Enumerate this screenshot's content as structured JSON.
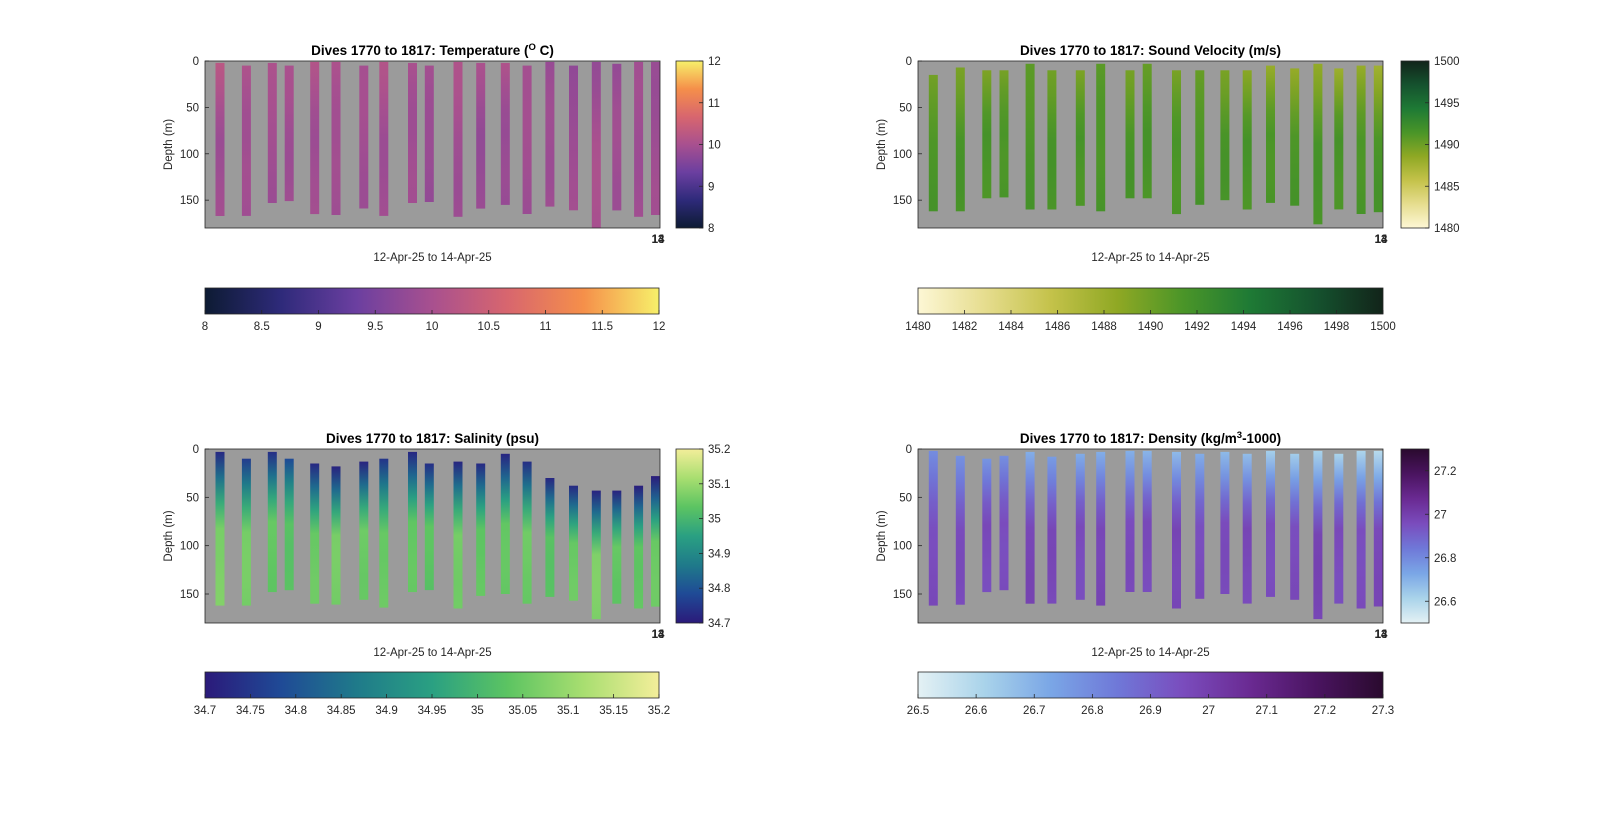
{
  "chart_data": [
    {
      "type": "heatmap",
      "title": "Dives 1770 to 1817: Temperature (",
      "title_sup": "O",
      "title_end": " C)",
      "xlabel": "12-Apr-25 to 14-Apr-25",
      "ylabel": "Depth (m)",
      "y_ticks": [
        "0",
        "50",
        "100",
        "150"
      ],
      "ylim": [
        0,
        180
      ],
      "y_reversed": true,
      "x_tick_labels": [
        "13",
        "14"
      ],
      "background_color": "#9b9b9b",
      "side_colorbar": {
        "ticks": [
          "8",
          "9",
          "10",
          "11",
          "12"
        ],
        "range": [
          8,
          12
        ]
      },
      "bottom_colorbar": {
        "ticks": [
          "8",
          "8.5",
          "9",
          "9.5",
          "10",
          "10.5",
          "11",
          "11.5",
          "12"
        ],
        "range": [
          8,
          12
        ]
      },
      "colormap": [
        "#0d1b33",
        "#2e2a7a",
        "#6b3fa0",
        "#a8508f",
        "#d8666e",
        "#f58f4a",
        "#f7f06a"
      ],
      "profiles": [
        {
          "top": 2,
          "bottom": 167,
          "top_value": 10.2,
          "deep_value": 9.9
        },
        {
          "top": 5,
          "bottom": 167,
          "top_value": 10.1,
          "deep_value": 9.9
        },
        {
          "top": 2,
          "bottom": 153,
          "top_value": 10.1,
          "deep_value": 9.9
        },
        {
          "top": 5,
          "bottom": 151,
          "top_value": 10.0,
          "deep_value": 9.9
        },
        {
          "top": 1,
          "bottom": 165,
          "top_value": 10.1,
          "deep_value": 9.9
        },
        {
          "top": 1,
          "bottom": 166,
          "top_value": 10.1,
          "deep_value": 9.9
        },
        {
          "top": 5,
          "bottom": 159,
          "top_value": 10.0,
          "deep_value": 9.9
        },
        {
          "top": 1,
          "bottom": 167,
          "top_value": 10.1,
          "deep_value": 9.9
        },
        {
          "top": 2,
          "bottom": 153,
          "top_value": 10.0,
          "deep_value": 9.9
        },
        {
          "top": 5,
          "bottom": 152,
          "top_value": 10.0,
          "deep_value": 9.8
        },
        {
          "top": 1,
          "bottom": 168,
          "top_value": 10.1,
          "deep_value": 9.9
        },
        {
          "top": 2,
          "bottom": 159,
          "top_value": 10.0,
          "deep_value": 9.8
        },
        {
          "top": 2,
          "bottom": 155,
          "top_value": 10.1,
          "deep_value": 9.8
        },
        {
          "top": 5,
          "bottom": 165,
          "top_value": 10.0,
          "deep_value": 9.9
        },
        {
          "top": 1,
          "bottom": 157,
          "top_value": 9.8,
          "deep_value": 9.9
        },
        {
          "top": 5,
          "bottom": 161,
          "top_value": 9.7,
          "deep_value": 9.9
        },
        {
          "top": 1,
          "bottom": 180,
          "top_value": 9.8,
          "deep_value": 10.0
        },
        {
          "top": 3,
          "bottom": 161,
          "top_value": 9.8,
          "deep_value": 9.9
        },
        {
          "top": 1,
          "bottom": 168,
          "top_value": 9.9,
          "deep_value": 9.9
        },
        {
          "top": 1,
          "bottom": 166,
          "top_value": 9.8,
          "deep_value": 9.9
        }
      ]
    },
    {
      "type": "heatmap",
      "title": "Dives 1770 to 1817: Sound Velocity (m/s)",
      "title_sup": "",
      "title_end": "",
      "xlabel": "12-Apr-25 to 14-Apr-25",
      "ylabel": "Depth (m)",
      "y_ticks": [
        "0",
        "50",
        "100",
        "150"
      ],
      "ylim": [
        0,
        180
      ],
      "y_reversed": true,
      "x_tick_labels": [
        "13",
        "14"
      ],
      "background_color": "#9b9b9b",
      "side_colorbar": {
        "ticks": [
          "1480",
          "1485",
          "1490",
          "1495",
          "1500"
        ],
        "range": [
          1480,
          1500
        ]
      },
      "bottom_colorbar": {
        "ticks": [
          "1480",
          "1482",
          "1484",
          "1486",
          "1488",
          "1490",
          "1492",
          "1494",
          "1496",
          "1498",
          "1500"
        ],
        "range": [
          1480,
          1500
        ]
      },
      "colormap": [
        "#fdf7d5",
        "#e6dd8f",
        "#c4c24a",
        "#8fa824",
        "#4a9528",
        "#1e7a35",
        "#15522e",
        "#12241a"
      ],
      "profiles": [
        {
          "top": 15,
          "bottom": 162,
          "top_value": 1489.5,
          "deep_value": 1491.5
        },
        {
          "top": 7,
          "bottom": 162,
          "top_value": 1489.5,
          "deep_value": 1491.5
        },
        {
          "top": 10,
          "bottom": 148,
          "top_value": 1489.5,
          "deep_value": 1491.5
        },
        {
          "top": 10,
          "bottom": 147,
          "top_value": 1489.5,
          "deep_value": 1491.5
        },
        {
          "top": 3,
          "bottom": 160,
          "top_value": 1490.5,
          "deep_value": 1491.5
        },
        {
          "top": 10,
          "bottom": 160,
          "top_value": 1490.0,
          "deep_value": 1491.5
        },
        {
          "top": 10,
          "bottom": 156,
          "top_value": 1489.5,
          "deep_value": 1491.5
        },
        {
          "top": 3,
          "bottom": 162,
          "top_value": 1490.5,
          "deep_value": 1491.5
        },
        {
          "top": 10,
          "bottom": 148,
          "top_value": 1489.5,
          "deep_value": 1491.5
        },
        {
          "top": 3,
          "bottom": 148,
          "top_value": 1490.5,
          "deep_value": 1491.5
        },
        {
          "top": 10,
          "bottom": 165,
          "top_value": 1489.5,
          "deep_value": 1491.5
        },
        {
          "top": 10,
          "bottom": 155,
          "top_value": 1490.0,
          "deep_value": 1491.5
        },
        {
          "top": 10,
          "bottom": 150,
          "top_value": 1489.5,
          "deep_value": 1491.5
        },
        {
          "top": 10,
          "bottom": 160,
          "top_value": 1489.0,
          "deep_value": 1491.5
        },
        {
          "top": 5,
          "bottom": 153,
          "top_value": 1488.0,
          "deep_value": 1491.5
        },
        {
          "top": 8,
          "bottom": 156,
          "top_value": 1488.0,
          "deep_value": 1491.5
        },
        {
          "top": 3,
          "bottom": 176,
          "top_value": 1488.5,
          "deep_value": 1491.5
        },
        {
          "top": 8,
          "bottom": 160,
          "top_value": 1488.0,
          "deep_value": 1491.5
        },
        {
          "top": 5,
          "bottom": 165,
          "top_value": 1488.0,
          "deep_value": 1491.5
        },
        {
          "top": 5,
          "bottom": 163,
          "top_value": 1487.5,
          "deep_value": 1491.5
        }
      ]
    },
    {
      "type": "heatmap",
      "title": "Dives 1770 to 1817: Salinity (psu)",
      "title_sup": "",
      "title_end": "",
      "xlabel": "12-Apr-25 to 14-Apr-25",
      "ylabel": "Depth (m)",
      "y_ticks": [
        "0",
        "50",
        "100",
        "150"
      ],
      "ylim": [
        0,
        180
      ],
      "y_reversed": true,
      "x_tick_labels": [
        "13",
        "14"
      ],
      "background_color": "#9b9b9b",
      "side_colorbar": {
        "ticks": [
          "34.7",
          "34.8",
          "34.9",
          "35",
          "35.1",
          "35.2"
        ],
        "range": [
          34.7,
          35.2
        ]
      },
      "bottom_colorbar": {
        "ticks": [
          "34.7",
          "34.75",
          "34.8",
          "34.85",
          "34.9",
          "34.95",
          "35",
          "35.05",
          "35.1",
          "35.15",
          "35.2"
        ],
        "range": [
          34.7,
          35.2
        ]
      },
      "colormap": [
        "#2b1a7a",
        "#1f4a96",
        "#1f7a8a",
        "#2aa082",
        "#5cc462",
        "#a8de70",
        "#f3ee9a"
      ],
      "profiles": [
        {
          "top": 3,
          "bottom": 162,
          "top_value": 34.72,
          "deep_value": 35.07
        },
        {
          "top": 10,
          "bottom": 162,
          "top_value": 34.76,
          "deep_value": 35.06
        },
        {
          "top": 3,
          "bottom": 148,
          "top_value": 34.74,
          "deep_value": 35.04
        },
        {
          "top": 10,
          "bottom": 146,
          "top_value": 34.78,
          "deep_value": 35.03
        },
        {
          "top": 15,
          "bottom": 160,
          "top_value": 34.72,
          "deep_value": 35.05
        },
        {
          "top": 18,
          "bottom": 161,
          "top_value": 34.72,
          "deep_value": 35.06
        },
        {
          "top": 13,
          "bottom": 156,
          "top_value": 34.72,
          "deep_value": 35.05
        },
        {
          "top": 10,
          "bottom": 164,
          "top_value": 34.74,
          "deep_value": 35.05
        },
        {
          "top": 3,
          "bottom": 148,
          "top_value": 34.72,
          "deep_value": 35.04
        },
        {
          "top": 15,
          "bottom": 146,
          "top_value": 34.74,
          "deep_value": 35.03
        },
        {
          "top": 13,
          "bottom": 165,
          "top_value": 34.72,
          "deep_value": 35.06
        },
        {
          "top": 15,
          "bottom": 152,
          "top_value": 34.72,
          "deep_value": 35.04
        },
        {
          "top": 5,
          "bottom": 150,
          "top_value": 34.72,
          "deep_value": 35.04
        },
        {
          "top": 13,
          "bottom": 160,
          "top_value": 34.74,
          "deep_value": 35.05
        },
        {
          "top": 30,
          "bottom": 153,
          "top_value": 34.72,
          "deep_value": 35.03
        },
        {
          "top": 38,
          "bottom": 157,
          "top_value": 34.72,
          "deep_value": 35.05
        },
        {
          "top": 43,
          "bottom": 176,
          "top_value": 34.72,
          "deep_value": 35.07
        },
        {
          "top": 43,
          "bottom": 160,
          "top_value": 34.72,
          "deep_value": 35.04
        },
        {
          "top": 38,
          "bottom": 165,
          "top_value": 34.7,
          "deep_value": 35.04
        },
        {
          "top": 28,
          "bottom": 163,
          "top_value": 34.7,
          "deep_value": 35.05
        }
      ]
    },
    {
      "type": "heatmap",
      "title": "Dives 1770 to 1817: Density (kg/m",
      "title_sup": "3",
      "title_end": "-1000)",
      "xlabel": "12-Apr-25 to 14-Apr-25",
      "ylabel": "Depth (m)",
      "y_ticks": [
        "0",
        "50",
        "100",
        "150"
      ],
      "ylim": [
        0,
        180
      ],
      "y_reversed": true,
      "x_tick_labels": [
        "13",
        "14"
      ],
      "background_color": "#9b9b9b",
      "side_colorbar": {
        "ticks": [
          "26.6",
          "26.8",
          "27",
          "27.2"
        ],
        "range": [
          26.5,
          27.3
        ]
      },
      "bottom_colorbar": {
        "ticks": [
          "26.5",
          "26.6",
          "26.7",
          "26.8",
          "26.9",
          "27",
          "27.1",
          "27.2",
          "27.3"
        ],
        "range": [
          26.5,
          27.3
        ]
      },
      "colormap": [
        "#e4f1f4",
        "#a9d3ea",
        "#7aa6e6",
        "#6f78d8",
        "#7a4cbd",
        "#6a2a92",
        "#4a1460",
        "#2a0a2e"
      ],
      "profiles": [
        {
          "top": 2,
          "bottom": 162,
          "top_value": 26.78,
          "deep_value": 26.96
        },
        {
          "top": 7,
          "bottom": 161,
          "top_value": 26.78,
          "deep_value": 26.96
        },
        {
          "top": 10,
          "bottom": 148,
          "top_value": 26.78,
          "deep_value": 26.96
        },
        {
          "top": 7,
          "bottom": 146,
          "top_value": 26.78,
          "deep_value": 26.96
        },
        {
          "top": 3,
          "bottom": 160,
          "top_value": 26.7,
          "deep_value": 26.98
        },
        {
          "top": 8,
          "bottom": 160,
          "top_value": 26.76,
          "deep_value": 26.97
        },
        {
          "top": 5,
          "bottom": 156,
          "top_value": 26.72,
          "deep_value": 26.96
        },
        {
          "top": 3,
          "bottom": 162,
          "top_value": 26.7,
          "deep_value": 26.98
        },
        {
          "top": 2,
          "bottom": 148,
          "top_value": 26.7,
          "deep_value": 26.96
        },
        {
          "top": 2,
          "bottom": 148,
          "top_value": 26.7,
          "deep_value": 26.96
        },
        {
          "top": 3,
          "bottom": 165,
          "top_value": 26.68,
          "deep_value": 26.98
        },
        {
          "top": 5,
          "bottom": 155,
          "top_value": 26.7,
          "deep_value": 26.96
        },
        {
          "top": 3,
          "bottom": 150,
          "top_value": 26.68,
          "deep_value": 26.96
        },
        {
          "top": 5,
          "bottom": 160,
          "top_value": 26.68,
          "deep_value": 26.97
        },
        {
          "top": 2,
          "bottom": 153,
          "top_value": 26.62,
          "deep_value": 26.96
        },
        {
          "top": 5,
          "bottom": 156,
          "top_value": 26.62,
          "deep_value": 26.96
        },
        {
          "top": 2,
          "bottom": 176,
          "top_value": 26.62,
          "deep_value": 26.98
        },
        {
          "top": 5,
          "bottom": 160,
          "top_value": 26.62,
          "deep_value": 26.96
        },
        {
          "top": 2,
          "bottom": 165,
          "top_value": 26.6,
          "deep_value": 26.96
        },
        {
          "top": 2,
          "bottom": 163,
          "top_value": 26.58,
          "deep_value": 26.97
        }
      ]
    }
  ]
}
